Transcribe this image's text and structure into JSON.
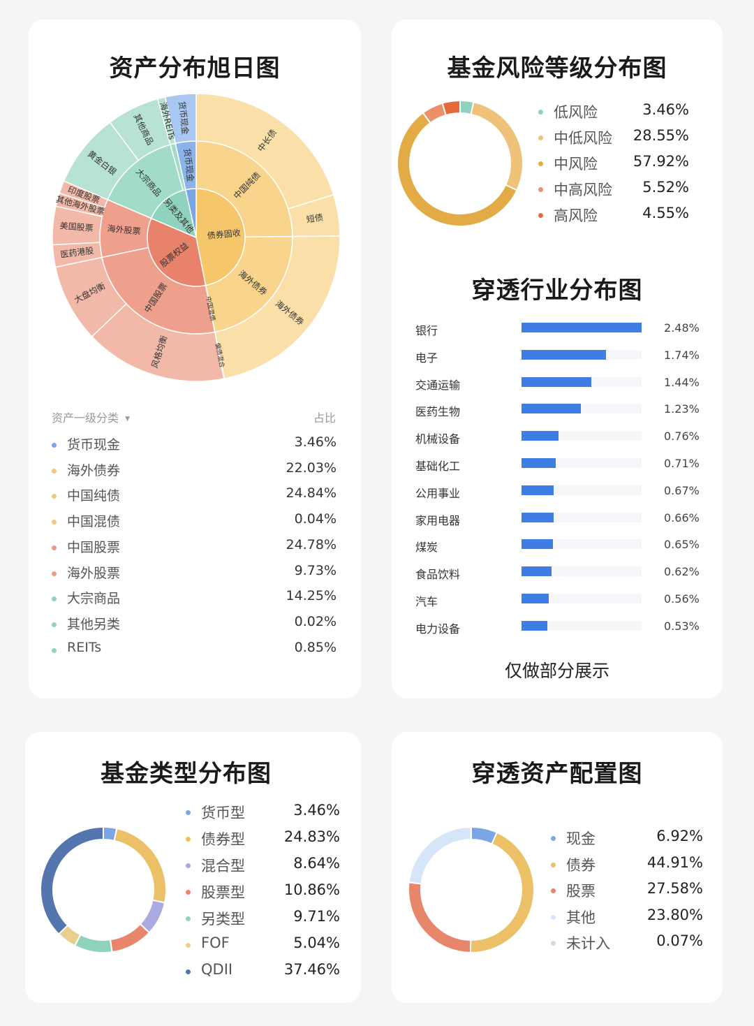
{
  "sunburst": {
    "title": "资产分布旭日图",
    "legend_header_left": "资产一级分类",
    "legend_header_right": "占比",
    "legend": [
      {
        "label": "货币现金",
        "value": "3.46%",
        "color": "#7ba6e3"
      },
      {
        "label": "海外债券",
        "value": "22.03%",
        "color": "#f2c97e"
      },
      {
        "label": "中国纯债",
        "value": "24.84%",
        "color": "#f2c97e"
      },
      {
        "label": "中国混债",
        "value": "0.04%",
        "color": "#f2c97e"
      },
      {
        "label": "中国股票",
        "value": "24.78%",
        "color": "#e89b86"
      },
      {
        "label": "海外股票",
        "value": "9.73%",
        "color": "#e89b86"
      },
      {
        "label": "大宗商品",
        "value": "14.25%",
        "color": "#8fd2bd"
      },
      {
        "label": "其他另类",
        "value": "0.02%",
        "color": "#8fd2bd"
      },
      {
        "label": "REITs",
        "value": "0.85%",
        "color": "#8fd2bd"
      }
    ]
  },
  "risk": {
    "title": "基金风险等级分布图",
    "legend": [
      {
        "label": "低风险",
        "value": "3.46%",
        "color": "#8fd2bd"
      },
      {
        "label": "中低风险",
        "value": "28.55%",
        "color": "#efc27a"
      },
      {
        "label": "中风险",
        "value": "57.92%",
        "color": "#e2ab45"
      },
      {
        "label": "中高风险",
        "value": "5.52%",
        "color": "#ec9068"
      },
      {
        "label": "高风险",
        "value": "4.55%",
        "color": "#e46a3c"
      }
    ]
  },
  "industry": {
    "title": "穿透行业分布图",
    "note": "仅做部分展示"
  },
  "fund_type": {
    "title": "基金类型分布图",
    "legend": [
      {
        "label": "货币型",
        "value": "3.46%",
        "color": "#7ba6e3"
      },
      {
        "label": "债券型",
        "value": "24.83%",
        "color": "#ecc067"
      },
      {
        "label": "混合型",
        "value": "8.64%",
        "color": "#aaaae0"
      },
      {
        "label": "股票型",
        "value": "10.86%",
        "color": "#e8866c"
      },
      {
        "label": "另类型",
        "value": "9.71%",
        "color": "#8fd2bd"
      },
      {
        "label": "FOF",
        "value": "5.04%",
        "color": "#ead08e"
      },
      {
        "label": "QDII",
        "value": "37.46%",
        "color": "#5475ae"
      }
    ]
  },
  "asset_alloc": {
    "title": "穿透资产配置图",
    "legend": [
      {
        "label": "现金",
        "value": "6.92%",
        "color": "#7ba6e3"
      },
      {
        "label": "债券",
        "value": "44.91%",
        "color": "#ecc067"
      },
      {
        "label": "股票",
        "value": "27.58%",
        "color": "#e8866c"
      },
      {
        "label": "其他",
        "value": "23.80%",
        "color": "#d6e6f8"
      },
      {
        "label": "未计入",
        "value": "0.07%",
        "color": "#d9d9d9"
      }
    ]
  },
  "chart_data": [
    {
      "type": "sunburst",
      "title": "资产分布旭日图",
      "rings": {
        "inner": [
          {
            "label": "债券固收",
            "value": 46.91,
            "color": "#f5c66a"
          },
          {
            "label": "股票权益",
            "value": 34.51,
            "color": "#e9826a"
          },
          {
            "label": "另类及其他",
            "value": 15.12,
            "color": "#8fd2bd"
          },
          {
            "label": "",
            "value": 3.46,
            "color": "#7ba6e3"
          }
        ],
        "middle": [
          {
            "label": "中国纯债",
            "value": 24.84,
            "color": "#f8d48c"
          },
          {
            "label": "海外债券",
            "value": 22.03,
            "color": "#f8d48c"
          },
          {
            "label": "中国混债",
            "value": 0.04,
            "color": "#f8d48c"
          },
          {
            "label": "中国股票",
            "value": 24.78,
            "color": "#eea08c"
          },
          {
            "label": "海外股票",
            "value": 9.73,
            "color": "#eea08c"
          },
          {
            "label": "大宗商品",
            "value": 14.25,
            "color": "#a2dcc8"
          },
          {
            "label": "",
            "value": 0.87,
            "color": "#a2dcc8"
          },
          {
            "label": "货币现金",
            "value": 3.46,
            "color": "#8ab3ea"
          }
        ],
        "outer": [
          {
            "label": "中长债",
            "value": 20.2,
            "color": "#fae0a8"
          },
          {
            "label": "短债",
            "value": 4.64,
            "color": "#fae0a8"
          },
          {
            "label": "海外债券",
            "value": 22.03,
            "color": "#fae0a8"
          },
          {
            "label": "偏债混合",
            "value": 0.04,
            "color": "#fae0a8"
          },
          {
            "label": "风格均衡",
            "value": 16.0,
            "color": "#f3b9a8"
          },
          {
            "label": "大盘均衡",
            "value": 8.78,
            "color": "#f3b9a8"
          },
          {
            "label": "医药港股",
            "value": 2.5,
            "color": "#f3b9a8"
          },
          {
            "label": "美国股票",
            "value": 4.3,
            "color": "#f3b9a8"
          },
          {
            "label": "其他海外股票",
            "value": 1.5,
            "color": "#f3b9a8"
          },
          {
            "label": "印度股票",
            "value": 1.43,
            "color": "#f3b9a8"
          },
          {
            "label": "黄金白银",
            "value": 8.35,
            "color": "#b8e3d4"
          },
          {
            "label": "其他商品",
            "value": 5.9,
            "color": "#b8e3d4"
          },
          {
            "label": "海外REITs",
            "value": 0.87,
            "color": "#b8e3d4"
          },
          {
            "label": "货币现金",
            "value": 3.46,
            "color": "#a9c7f0"
          }
        ]
      },
      "tags": [
        {
          "text": "债券固收",
          "ring": "inner",
          "index": 0
        },
        {
          "text": "股票权益",
          "ring": "inner",
          "index": 1
        },
        {
          "text": "另类及其他",
          "ring": "inner",
          "index": 2
        },
        {
          "text": "中国纯债",
          "ring": "middle",
          "index": 0
        },
        {
          "text": "海外债券",
          "ring": "middle",
          "index": 1
        },
        {
          "text": "中国混债",
          "ring": "middle",
          "index": 2
        },
        {
          "text": "中国股票",
          "ring": "middle",
          "index": 3
        },
        {
          "text": "海外股票",
          "ring": "middle",
          "index": 4
        },
        {
          "text": "大宗商品",
          "ring": "middle",
          "index": 5
        },
        {
          "text": "货币现金",
          "ring": "middle",
          "index": 7
        },
        {
          "text": "中长债",
          "ring": "outer",
          "index": 0
        },
        {
          "text": "短债",
          "ring": "outer",
          "index": 1
        },
        {
          "text": "海外债券",
          "ring": "outer",
          "index": 2
        },
        {
          "text": "偏债混合",
          "ring": "outer",
          "index": 3
        },
        {
          "text": "风格均衡",
          "ring": "outer",
          "index": 4
        },
        {
          "text": "大盘均衡",
          "ring": "outer",
          "index": 5
        },
        {
          "text": "医药港股",
          "ring": "outer",
          "index": 6
        },
        {
          "text": "美国股票",
          "ring": "outer",
          "index": 7
        },
        {
          "text": "其他海外股票",
          "ring": "outer",
          "index": 8
        },
        {
          "text": "印度股票",
          "ring": "outer",
          "index": 9
        },
        {
          "text": "黄金白银",
          "ring": "outer",
          "index": 10
        },
        {
          "text": "其他商品",
          "ring": "outer",
          "index": 11
        },
        {
          "text": "海外REITs",
          "ring": "outer",
          "index": 12
        },
        {
          "text": "货币现金",
          "ring": "outer",
          "index": 13
        }
      ]
    },
    {
      "type": "pie",
      "title": "基金风险等级分布图",
      "series": [
        {
          "values": [
            3.46,
            28.55,
            57.92,
            5.52,
            4.55
          ]
        }
      ],
      "categories": [
        "低风险",
        "中低风险",
        "中风险",
        "中高风险",
        "高风险"
      ]
    },
    {
      "type": "bar",
      "title": "穿透行业分布图",
      "categories": [
        "银行",
        "电子",
        "交通运输",
        "医药生物",
        "机械设备",
        "基础化工",
        "公用事业",
        "家用电器",
        "煤炭",
        "食品饮料",
        "汽车",
        "电力设备"
      ],
      "values": [
        2.48,
        1.74,
        1.44,
        1.23,
        0.76,
        0.71,
        0.67,
        0.66,
        0.65,
        0.62,
        0.56,
        0.53
      ],
      "labels": [
        "2.48%",
        "1.74%",
        "1.44%",
        "1.23%",
        "0.76%",
        "0.71%",
        "0.67%",
        "0.66%",
        "0.65%",
        "0.62%",
        "0.56%",
        "0.53%"
      ],
      "xlim": [
        0,
        2.48
      ]
    },
    {
      "type": "pie",
      "title": "基金类型分布图",
      "series": [
        {
          "values": [
            3.46,
            24.83,
            8.64,
            10.86,
            9.71,
            5.04,
            37.46
          ]
        }
      ],
      "categories": [
        "货币型",
        "债券型",
        "混合型",
        "股票型",
        "另类型",
        "FOF",
        "QDII"
      ]
    },
    {
      "type": "pie",
      "title": "穿透资产配置图",
      "series": [
        {
          "values": [
            6.92,
            44.91,
            27.58,
            23.8,
            0.07
          ]
        }
      ],
      "categories": [
        "现金",
        "债券",
        "股票",
        "其他",
        "未计入"
      ]
    }
  ]
}
